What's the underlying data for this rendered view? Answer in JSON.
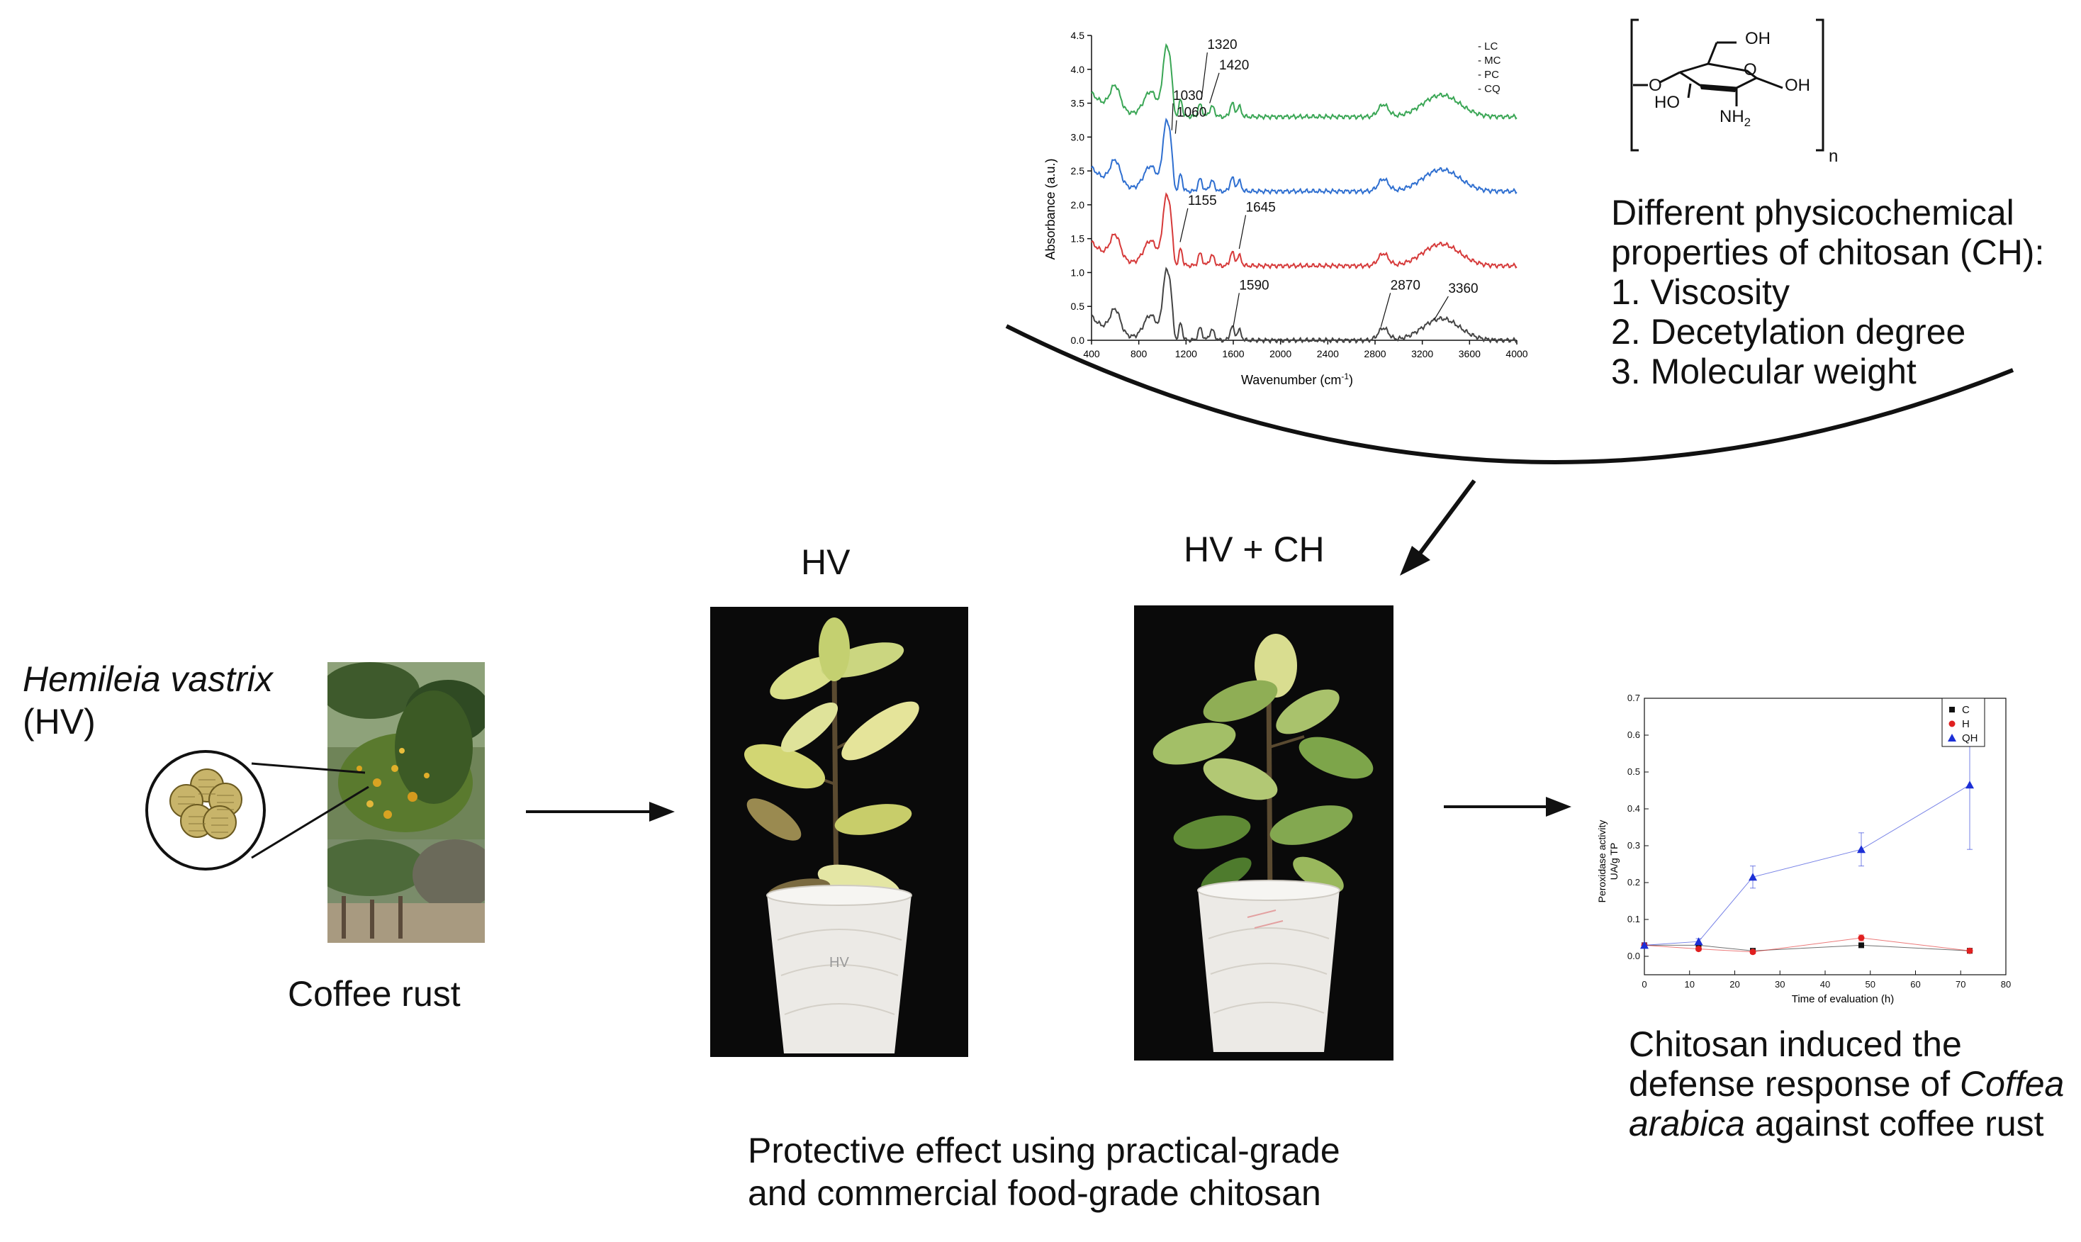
{
  "hv_block": {
    "species": "Hemileia vastrix",
    "abbrev": "(HV)",
    "caption": "Coffee rust",
    "photo_icon": "coffee-leaf-rust-photo",
    "spore_icon": "urediniospore-cluster-icon"
  },
  "ftir": {
    "xlabel_main": "Wavenumber (cm",
    "xlabel_sup": "-1",
    "xlabel_end": ")",
    "ylabel": "Absorbance (a.u.)",
    "yticks": [
      "0.0",
      "0.5",
      "1.0",
      "1.5",
      "2.0",
      "2.5",
      "3.0",
      "3.5",
      "4.0",
      "4.5"
    ],
    "xticks": [
      "400",
      "800",
      "1200",
      "1600",
      "2000",
      "2400",
      "2800",
      "3200",
      "3600",
      "4000"
    ],
    "legend": [
      "LC",
      "MC",
      "PC",
      "CQ"
    ],
    "series_colors": [
      "#3aa655",
      "#2f6fd0",
      "#d63a3a",
      "#444444"
    ],
    "peaks": {
      "p1320": "1320",
      "p1420": "1420",
      "p1030": "1030",
      "p1060": "1060",
      "p1155": "1155",
      "p1645": "1645",
      "p1590": "1590",
      "p2870": "2870",
      "p3360": "3360"
    }
  },
  "structure": {
    "oh_top": "OH",
    "ring_o": "O",
    "link_o": "O",
    "oh_right": "OH",
    "ho_left": "HO",
    "nh2": "NH",
    "nh2_sub": "2",
    "n_sub": "n"
  },
  "properties": {
    "heading1": "Different physicochemical",
    "heading2": "properties of chitosan (CH):",
    "items": [
      "1. Viscosity",
      "2. Decetylation degree",
      "3. Molecular weight"
    ]
  },
  "plants": {
    "hv_label": "HV",
    "hvch_label": "HV + CH",
    "cup_label": "HV",
    "caption_line1": "Protective effect using practical-grade",
    "caption_line2": "and commercial food-grade chitosan",
    "hv_photo_icon": "yellowing-coffee-plant-photo",
    "hvch_photo_icon": "healthy-coffee-plant-photo"
  },
  "peroxidase": {
    "caption_line1": "Chitosan induced the",
    "caption_line2a": "defense response of ",
    "caption_line2b": "Coffea",
    "caption_line3a": "arabica",
    "caption_line3b": " against coffee rust"
  },
  "chart_data": {
    "type": "line",
    "xlabel": "Time of evaluation (h)",
    "ylabel_line1": "Peroxidase activity",
    "ylabel_line2": "UA/g TP",
    "xlim": [
      0,
      80
    ],
    "ylim": [
      -0.05,
      0.7
    ],
    "xticks": [
      "0",
      "10",
      "20",
      "30",
      "40",
      "50",
      "60",
      "70",
      "80"
    ],
    "yticks": [
      "0.0",
      "0.1",
      "0.2",
      "0.3",
      "0.4",
      "0.5",
      "0.6",
      "0.7"
    ],
    "legend_position": "top-right",
    "x": [
      0,
      12,
      24,
      48,
      72
    ],
    "series": [
      {
        "name": "C",
        "color": "#111111",
        "marker": "square",
        "values": [
          0.03,
          0.03,
          0.015,
          0.03,
          0.015
        ],
        "errors": [
          0.005,
          0.005,
          0.005,
          0.005,
          0.005
        ]
      },
      {
        "name": "H",
        "color": "#e02020",
        "marker": "circle",
        "values": [
          0.03,
          0.02,
          0.012,
          0.05,
          0.015
        ],
        "errors": [
          0.005,
          0.005,
          0.005,
          0.008,
          0.005
        ]
      },
      {
        "name": "QH",
        "color": "#1c2fd6",
        "marker": "triangle",
        "values": [
          0.03,
          0.04,
          0.215,
          0.29,
          0.465
        ],
        "errors": [
          0.005,
          0.008,
          0.03,
          0.045,
          0.175
        ]
      }
    ]
  }
}
